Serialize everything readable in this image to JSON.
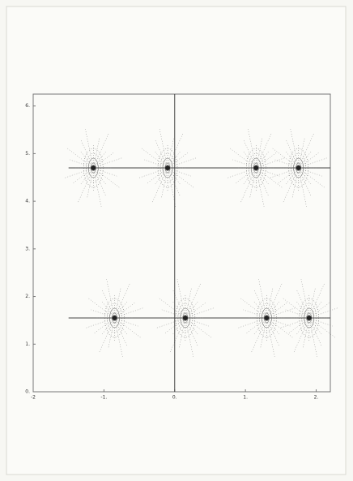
{
  "chart_data": {
    "type": "scatter",
    "x": [
      -1.15,
      -0.1,
      1.15,
      1.75,
      -0.85,
      0.15,
      1.3,
      1.9
    ],
    "y": [
      4.7,
      4.7,
      4.7,
      4.7,
      1.55,
      1.55,
      1.55,
      1.55
    ],
    "color": "#222222",
    "hlines": [
      4.7,
      1.55
    ],
    "vlines": [
      0
    ],
    "xlim": [
      -2,
      2.2
    ],
    "ylim": [
      0,
      6.25
    ],
    "xticks": [
      -2,
      {
        "value": -1,
        "label": "-1."
      },
      {
        "value": 0,
        "label": "0."
      },
      {
        "value": 1,
        "label": "1."
      },
      {
        "value": 2,
        "label": "2."
      }
    ],
    "yticks": [
      {
        "value": 0,
        "label": "0."
      },
      {
        "value": 1,
        "label": "1."
      },
      {
        "value": 2,
        "label": "2."
      },
      {
        "value": 3,
        "label": "3."
      },
      {
        "value": 4,
        "label": "4."
      },
      {
        "value": 5,
        "label": "5."
      },
      {
        "value": 6,
        "label": "6."
      }
    ],
    "grid": false
  }
}
